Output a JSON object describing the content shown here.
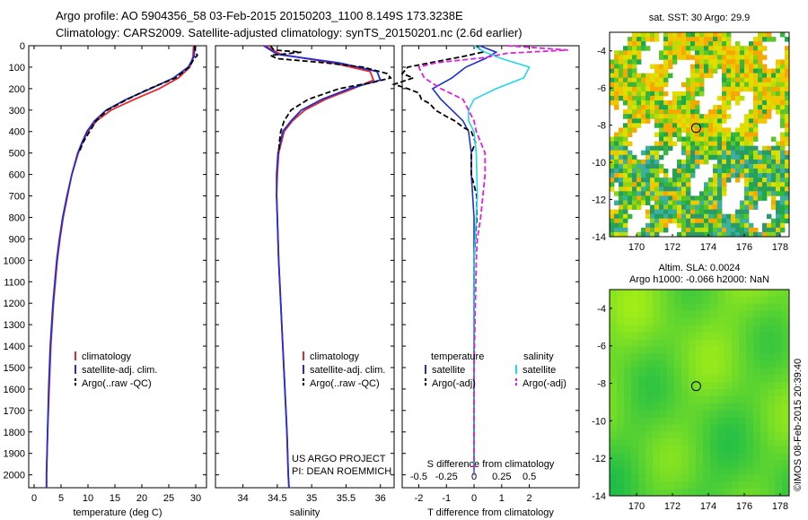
{
  "title_line1": "Argo profile: AO 5904356_58 03-Feb-2015 20150203_1100 8.149S 173.3238E",
  "title_line2": "Climatology: CARS2009. Satellite-adjusted climatology: synTS_20150201.nc (2.6d earlier)",
  "depth_ticks": [
    0,
    100,
    200,
    300,
    400,
    500,
    600,
    700,
    800,
    900,
    1000,
    1100,
    1200,
    1300,
    1400,
    1500,
    1600,
    1700,
    1800,
    1900,
    2000
  ],
  "colors": {
    "clim": "#e8262a",
    "sat": "#1f2fd6",
    "argo": "#000000",
    "sat_s": "#22d8e8",
    "argo_s": "#e020e0"
  },
  "chart_data": [
    {
      "type": "line",
      "name": "temperature",
      "xlabel": "temperature (deg C)",
      "ylabel": "depth",
      "xlim": [
        -1,
        32
      ],
      "ylim": [
        2060,
        0
      ],
      "xticks": [
        0,
        5,
        10,
        15,
        20,
        25,
        30
      ],
      "legend": [
        "climatology",
        "satellite-adj. clim.",
        "Argo(..raw -QC)"
      ],
      "series": [
        {
          "name": "climatology",
          "depth": [
            0,
            50,
            100,
            150,
            200,
            250,
            300,
            350,
            400,
            450,
            500,
            600,
            700,
            800,
            900,
            1000,
            1200,
            1400,
            1600,
            1800,
            2000,
            2060
          ],
          "values": [
            29.6,
            29.5,
            28.9,
            26.8,
            23.2,
            18.6,
            14.3,
            11.6,
            10.0,
            9.0,
            8.2,
            7.0,
            6.2,
            5.4,
            4.8,
            4.3,
            3.6,
            3.1,
            2.8,
            2.5,
            2.3,
            2.3
          ]
        },
        {
          "name": "satellite-adj. clim.",
          "depth": [
            0,
            50,
            100,
            150,
            200,
            250,
            300,
            350,
            400,
            450,
            500,
            600,
            700,
            800,
            900,
            1000,
            1200,
            1400,
            1600,
            1800,
            2000,
            2060
          ],
          "values": [
            29.8,
            29.7,
            28.6,
            25.9,
            21.6,
            17.1,
            13.4,
            11.2,
            9.8,
            8.9,
            8.1,
            7.0,
            6.1,
            5.3,
            4.7,
            4.2,
            3.5,
            3.0,
            2.7,
            2.5,
            2.3,
            2.3
          ]
        },
        {
          "name": "Argo(..raw -QC)",
          "depth": [
            0,
            20,
            45,
            60,
            100,
            150,
            200,
            250,
            300,
            350,
            400,
            450,
            500
          ],
          "values": [
            29.8,
            29.9,
            30.3,
            29.7,
            28.8,
            26.3,
            21.4,
            17.3,
            13.6,
            11.5,
            10.3,
            9.1,
            8.3
          ]
        }
      ]
    },
    {
      "type": "line",
      "name": "salinity",
      "xlabel": "salinity",
      "xlim": [
        33.6,
        36.2
      ],
      "ylim": [
        2060,
        0
      ],
      "xticks": [
        34,
        34.5,
        35,
        35.5,
        36
      ],
      "xticklabels": [
        "34",
        "34.5",
        "35",
        "35.5",
        "36"
      ],
      "legend": [
        "climatology",
        "satellite-adj. clim.",
        "Argo(..raw -QC)"
      ],
      "annotation": [
        "US ARGO PROJECT",
        "PI: DEAN ROEMMICH"
      ],
      "series": [
        {
          "name": "climatology",
          "depth": [
            0,
            40,
            80,
            120,
            160,
            200,
            250,
            300,
            350,
            400,
            500,
            600,
            700,
            800,
            1000,
            1200,
            1400,
            1600,
            1800,
            2000,
            2060
          ],
          "values": [
            34.32,
            34.55,
            35.3,
            35.85,
            35.9,
            35.6,
            35.2,
            34.9,
            34.72,
            34.6,
            34.52,
            34.5,
            34.49,
            34.5,
            34.52,
            34.55,
            34.58,
            34.61,
            34.64,
            34.66,
            34.67
          ]
        },
        {
          "name": "satellite-adj. clim.",
          "depth": [
            0,
            40,
            80,
            120,
            160,
            200,
            250,
            300,
            350,
            400,
            500,
            600,
            700,
            800,
            1000,
            1200,
            1400,
            1600,
            1800,
            2000,
            2060
          ],
          "values": [
            34.3,
            34.5,
            35.4,
            35.95,
            36.0,
            35.55,
            35.15,
            34.85,
            34.7,
            34.58,
            34.51,
            34.49,
            34.49,
            34.5,
            34.52,
            34.55,
            34.58,
            34.61,
            34.64,
            34.66,
            34.67
          ]
        },
        {
          "name": "Argo(..raw -QC)",
          "depth": [
            0,
            20,
            30,
            45,
            60,
            80,
            100,
            130,
            150,
            170,
            200,
            250,
            300,
            350,
            400,
            450,
            500
          ],
          "values": [
            34.4,
            34.45,
            34.85,
            34.4,
            34.5,
            35.2,
            35.75,
            36.1,
            36.15,
            35.9,
            35.4,
            34.95,
            34.7,
            34.6,
            34.55,
            34.53,
            34.52
          ]
        }
      ]
    },
    {
      "type": "line",
      "name": "difference",
      "xlabel": "T difference from climatology",
      "xlabel_top": "S difference from climatology",
      "xlim": [
        -2.6,
        3.8
      ],
      "ylim": [
        2060,
        0
      ],
      "xticks": [
        -2,
        -1,
        0,
        1,
        2
      ],
      "sticks": [
        -0.5,
        -0.25,
        0,
        0.25,
        0.5
      ],
      "sticklabels": [
        "-0.5",
        "-0.25",
        "0",
        "0.25",
        "0.5"
      ],
      "legend_left_title": "temperature",
      "legend_right_title": "salinity",
      "legend_left": [
        "satellite",
        "Argo(-adj)"
      ],
      "legend_right": [
        "satellite",
        "Argo(-adj)"
      ],
      "series": [
        {
          "name": "T satellite",
          "depth": [
            0,
            30,
            60,
            100,
            150,
            200,
            250,
            300,
            350,
            400,
            500,
            600,
            800,
            1000,
            1500,
            2000
          ],
          "values": [
            0.2,
            0.8,
            0.4,
            -0.3,
            -0.8,
            -1.5,
            -1.2,
            -0.8,
            -0.4,
            -0.2,
            -0.1,
            -0.1,
            0,
            0,
            0,
            0
          ]
        },
        {
          "name": "T Argo(-adj)",
          "depth": [
            0,
            30,
            50,
            80,
            100,
            130,
            150,
            180,
            200,
            220,
            250,
            270,
            300,
            330,
            350,
            380,
            400,
            450,
            500,
            600,
            700,
            800,
            1000,
            1200,
            1400,
            1600,
            1800,
            2000
          ],
          "values": [
            0.1,
            0.3,
            -0.4,
            -1.6,
            -2.4,
            -2.6,
            -2.2,
            -2.9,
            -2.4,
            -2.0,
            -1.9,
            -1.6,
            -1.4,
            -1.0,
            -0.7,
            -0.4,
            -0.1,
            0.05,
            -0.1,
            -0.1,
            0.1,
            0.1,
            0,
            0,
            0,
            0,
            0,
            0
          ]
        },
        {
          "name": "S satellite",
          "depth": [
            0,
            30,
            60,
            100,
            150,
            200,
            250,
            300,
            350,
            400,
            500,
            700,
            1000,
            1500,
            2000
          ],
          "values": [
            0.0,
            0.1,
            0.25,
            0.5,
            0.45,
            0.2,
            0.0,
            -0.05,
            -0.05,
            0.0,
            0.02,
            0.03,
            0.0,
            0.0,
            0.0
          ]
        },
        {
          "name": "S Argo(-adj)",
          "depth": [
            0,
            20,
            35,
            55,
            80,
            100,
            150,
            200,
            250,
            300,
            350,
            400,
            500,
            600,
            700,
            800,
            900,
            1000,
            1500,
            2000
          ],
          "values": [
            0.3,
            0.85,
            0.3,
            0.1,
            -0.35,
            -0.5,
            -0.45,
            -0.3,
            -0.1,
            -0.05,
            0.0,
            0.02,
            0.1,
            0.1,
            0.08,
            0.06,
            0.03,
            0.02,
            0.0,
            0.0
          ]
        }
      ]
    },
    {
      "type": "heatmap",
      "name": "sst_map",
      "title": "sat. SST: 30 Argo: 29.9",
      "xlim": [
        168.5,
        178.5
      ],
      "ylim": [
        -14,
        -3
      ],
      "xticks": [
        170,
        172,
        174,
        176,
        178
      ],
      "yticks": [
        -4,
        -6,
        -8,
        -10,
        -12,
        -14
      ],
      "marker": [
        173.32,
        -8.15
      ]
    },
    {
      "type": "heatmap",
      "name": "sla_map",
      "title_line1": "Altim. SLA: 0.0024",
      "title_line2": "Argo h1000: -0.066 h2000: NaN",
      "xlim": [
        168.5,
        178.5
      ],
      "ylim": [
        -14,
        -3
      ],
      "xticks": [
        170,
        172,
        174,
        176,
        178
      ],
      "yticks": [
        -4,
        -6,
        -8,
        -10,
        -12,
        -14
      ],
      "marker": [
        173.32,
        -8.15
      ]
    }
  ],
  "footer_credit": "©IMOS 08-Feb-2015 20:39:40"
}
